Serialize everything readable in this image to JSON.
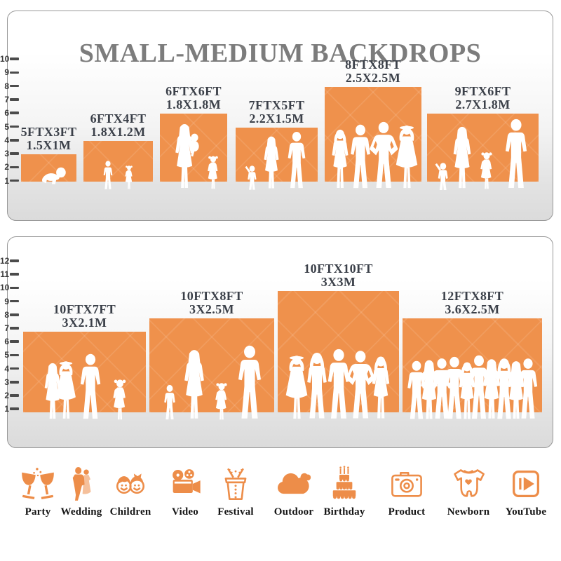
{
  "title": "SMALL-MEDIUM BACKDROPS",
  "accent_color": "#EF914C",
  "top_panel": {
    "scale_max": 10,
    "backdrops": [
      {
        "ft": "5FTX3FT",
        "m": "1.5X1M",
        "w_ft": 5,
        "h_ft": 3
      },
      {
        "ft": "6FTX4FT",
        "m": "1.8X1.2M",
        "w_ft": 6,
        "h_ft": 4
      },
      {
        "ft": "6FTX6FT",
        "m": "1.8X1.8M",
        "w_ft": 6,
        "h_ft": 6
      },
      {
        "ft": "7FTX5FT",
        "m": "2.2X1.5M",
        "w_ft": 7,
        "h_ft": 5
      },
      {
        "ft": "8FTX8FT",
        "m": "2.5X2.5M",
        "w_ft": 8,
        "h_ft": 8
      },
      {
        "ft": "9FTX6FT",
        "m": "2.7X1.8M",
        "w_ft": 9,
        "h_ft": 6
      }
    ]
  },
  "bottom_panel": {
    "scale_max": 12,
    "backdrops": [
      {
        "ft": "10FTX7FT",
        "m": "3X2.1M",
        "w_ft": 10,
        "h_ft": 7
      },
      {
        "ft": "10FTX8FT",
        "m": "3X2.5M",
        "w_ft": 10,
        "h_ft": 8
      },
      {
        "ft": "10FTX10FT",
        "m": "3X3M",
        "w_ft": 10,
        "h_ft": 10
      },
      {
        "ft": "12FTX8FT",
        "m": "3.6X2.5M",
        "w_ft": 12,
        "h_ft": 8
      }
    ]
  },
  "categories": [
    {
      "label": "Party",
      "icon": "party-icon"
    },
    {
      "label": "Wedding",
      "icon": "wedding-icon"
    },
    {
      "label": "Children",
      "icon": "children-icon"
    },
    {
      "label": "Video",
      "icon": "video-icon"
    },
    {
      "label": "Festival",
      "icon": "festival-icon"
    },
    {
      "label": "Outdoor",
      "icon": "outdoor-icon"
    },
    {
      "label": "Birthday",
      "icon": "birthday-icon"
    },
    {
      "label": "Product",
      "icon": "product-icon"
    },
    {
      "label": "Newborn",
      "icon": "newborn-icon"
    },
    {
      "label": "YouTube",
      "icon": "youtube-icon"
    }
  ]
}
